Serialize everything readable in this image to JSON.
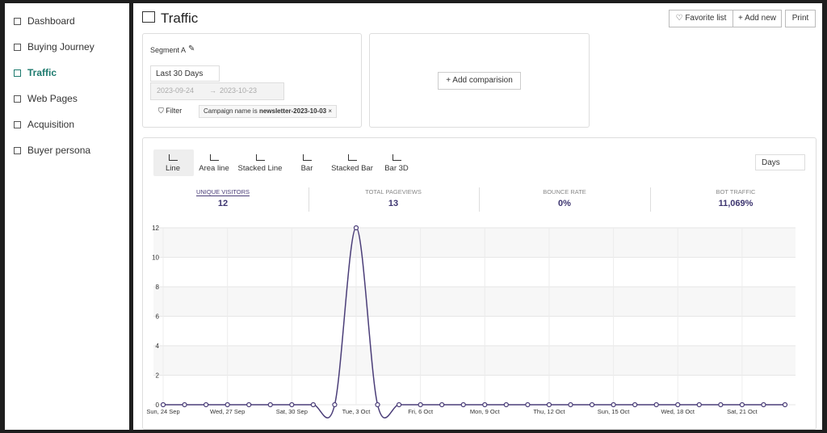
{
  "sidebar": {
    "items": [
      "Dashboard",
      "Buying Journey",
      "Traffic",
      "Web Pages",
      "Acquisition",
      "Buyer persona"
    ],
    "active": 2
  },
  "header": {
    "title": "Traffic",
    "buttons": [
      "Favorite list",
      "Add new",
      "Print"
    ]
  },
  "segment": {
    "label": "Segment A",
    "range": "Last 30 Days",
    "start": "2023-09-24",
    "end": "2023-10-23",
    "filter": "Filter",
    "chip_prefix": "Campaign name is",
    "chip_value": "newsletter-2023-10-03"
  },
  "comparison": {
    "button": "Add comparision"
  },
  "chart_types": {
    "items": [
      "Line",
      "Area line",
      "Stacked Line",
      "Bar",
      "Stacked Bar",
      "Bar 3D"
    ],
    "selected": 0
  },
  "granularity": "Days",
  "metrics": [
    {
      "label": "UNIQUE VISITORS",
      "value": "12"
    },
    {
      "label": "TOTAL PAGEVIEWS",
      "value": "13"
    },
    {
      "label": "BOUNCE RATE",
      "value": "0%"
    },
    {
      "label": "BOT TRAFFIC",
      "value": "11,069%"
    }
  ],
  "chart_data": {
    "type": "line",
    "categories": [
      "Sun, 24 Sep",
      null,
      null,
      "Wed, 27 Sep",
      null,
      null,
      "Sat, 30 Sep",
      null,
      null,
      "Tue, 3 Oct",
      null,
      null,
      "Fri, 6 Oct",
      null,
      null,
      "Mon, 9 Oct",
      null,
      null,
      "Thu, 12 Oct",
      null,
      null,
      "Sun, 15 Oct",
      null,
      null,
      "Wed, 18 Oct",
      null,
      null,
      "Sat, 21 Oct",
      null,
      null
    ],
    "series": [
      {
        "name": "Unique visitors",
        "color": "#4a3d78",
        "values": [
          0,
          0,
          0,
          0,
          0,
          0,
          0,
          0,
          0,
          12,
          0,
          0,
          0,
          0,
          0,
          0,
          0,
          0,
          0,
          0,
          0,
          0,
          0,
          0,
          0,
          0,
          0,
          0,
          0,
          0
        ]
      }
    ],
    "ylim": [
      0,
      12
    ],
    "yticks": [
      0,
      2,
      4,
      6,
      8,
      10,
      12
    ],
    "grid": true
  }
}
